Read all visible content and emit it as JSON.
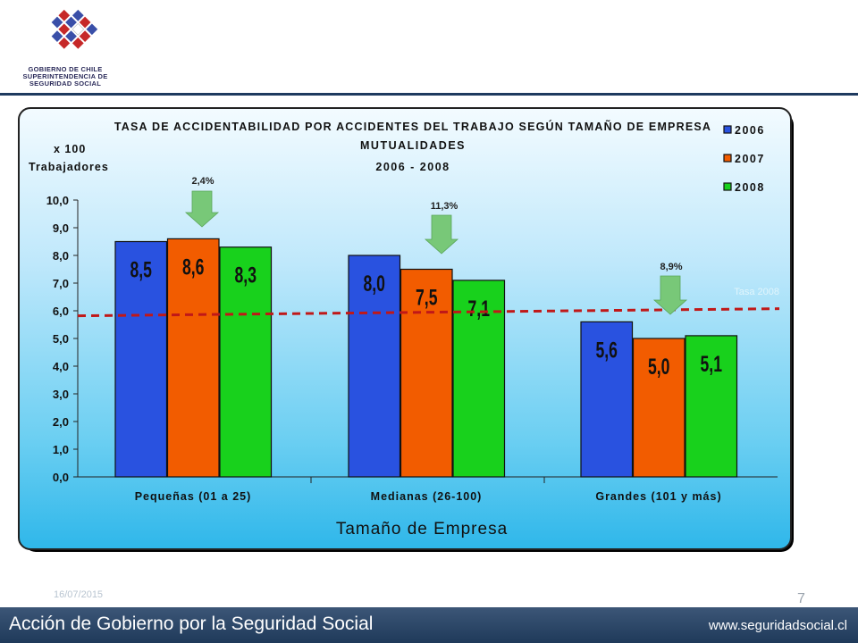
{
  "header": {
    "logo_lines": [
      "GOBIERNO DE CHILE",
      "SUPERINTENDENCIA DE",
      "SEGURIDAD SOCIAL"
    ]
  },
  "footer": {
    "date": "16/07/2015",
    "page_number": "7",
    "slogan": "Acción de Gobierno por la Seguridad Social",
    "website": "www.seguridadsocial.cl"
  },
  "colors": {
    "series_2006": "#2952e0",
    "series_2007": "#f25c00",
    "series_2008": "#18d11c",
    "rate_line": "#c01818",
    "arrow": "#78c878"
  },
  "chart_data": {
    "type": "bar",
    "title_lines": [
      "TASA DE ACCIDENTABILIDAD POR ACCIDENTES DEL TRABAJO SEGÚN TAMAÑO DE EMPRESA",
      "MUTUALIDADES",
      "2006 - 2008"
    ],
    "ylabel_lines": [
      "x 100",
      "Trabajadores"
    ],
    "xlabel": "Tamaño de Empresa",
    "categories": [
      "Pequeñas (01 a 25)",
      "Medianas (26-100)",
      "Grandes (101 y más)"
    ],
    "series": [
      {
        "name": "2006",
        "values": [
          8.5,
          8.0,
          5.6
        ],
        "labels": [
          "8,5",
          "8,0",
          "5,6"
        ]
      },
      {
        "name": "2007",
        "values": [
          8.6,
          7.5,
          5.0
        ],
        "labels": [
          "8,6",
          "7,5",
          "5,0"
        ]
      },
      {
        "name": "2008",
        "values": [
          8.3,
          7.1,
          5.1
        ],
        "labels": [
          "8,3",
          "7,1",
          "5,1"
        ]
      }
    ],
    "yticks": [
      0,
      1,
      2,
      3,
      4,
      5,
      6,
      7,
      8,
      9,
      10
    ],
    "ytick_labels": [
      "0,0",
      "1,0",
      "2,0",
      "3,0",
      "4,0",
      "5,0",
      "6,0",
      "7,0",
      "8,0",
      "9,0",
      "10,0"
    ],
    "ylim": [
      0,
      10
    ],
    "reference_line": {
      "value": 5.85,
      "label": "Tasa 2008"
    },
    "change_annotations": [
      "2,4%",
      "11,3%",
      "8,9%"
    ],
    "legend_position": "top-right",
    "grid": false
  }
}
